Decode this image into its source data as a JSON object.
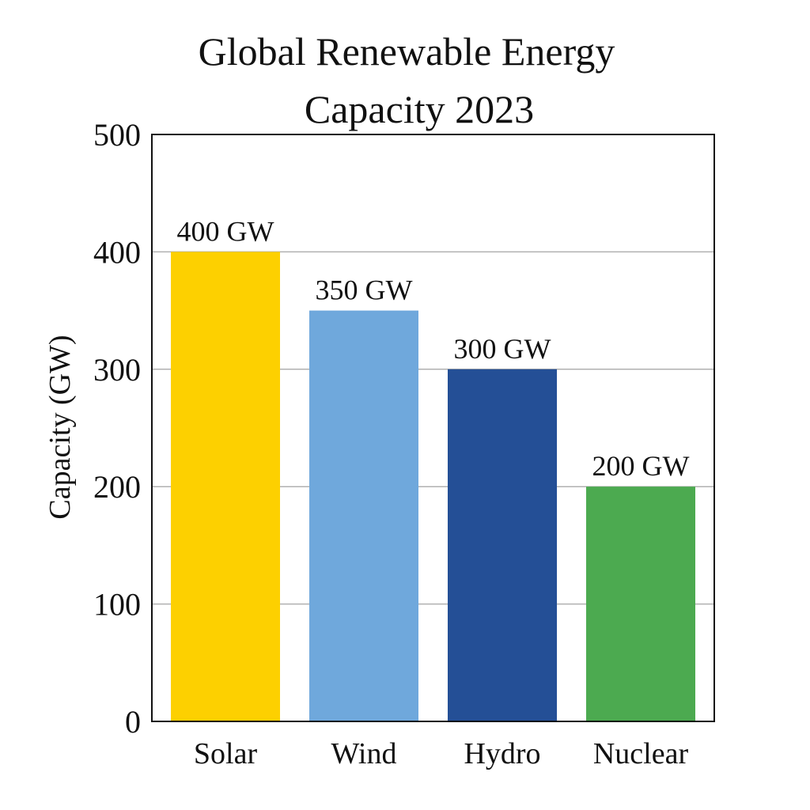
{
  "chart_data": {
    "type": "bar",
    "title_lines": [
      "Global Renewable Energy",
      "Capacity 2023"
    ],
    "title": "Global Renewable Energy Capacity 2023",
    "xlabel": "",
    "ylabel": "Capacity (GW)",
    "categories": [
      "Solar",
      "Wind",
      "Hydro",
      "Nuclear"
    ],
    "values": [
      400,
      350,
      300,
      200
    ],
    "value_labels": [
      "400 GW",
      "350 GW",
      "300 GW",
      "200 GW"
    ],
    "colors": [
      "#FDD000",
      "#6FA8DC",
      "#244F96",
      "#4CAA50"
    ],
    "ylim": [
      0,
      500
    ],
    "yticks": [
      0,
      100,
      200,
      300,
      400,
      500
    ],
    "grid": true,
    "legend": "none"
  }
}
